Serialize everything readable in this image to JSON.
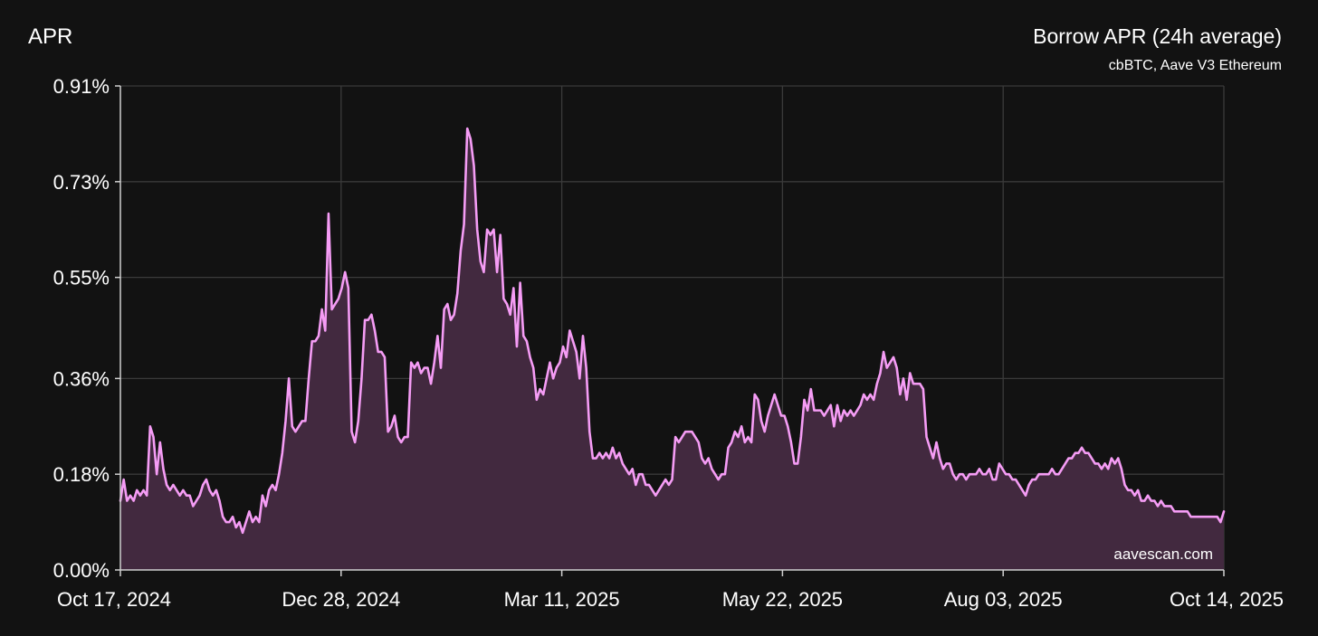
{
  "chart_data": {
    "type": "area",
    "title": "Borrow APR (24h average)",
    "subtitle": "cbBTC, Aave V3 Ethereum",
    "ylabel": "APR",
    "xlabel": "",
    "watermark": "aavescan.com",
    "x_start": "Oct 17, 2024",
    "x_end": "Oct 14, 2025",
    "ylim": [
      0,
      0.91
    ],
    "y_ticks": [
      0,
      0.18,
      0.36,
      0.55,
      0.73,
      0.91
    ],
    "y_tick_labels": [
      "0.00%",
      "0.18%",
      "0.36%",
      "0.55%",
      "0.73%",
      "0.91%"
    ],
    "x_tick_labels": [
      "Oct 17, 2024",
      "Dec 28, 2024",
      "Mar 11, 2025",
      "May 22, 2025",
      "Aug 03, 2025",
      "Oct 14, 2025"
    ],
    "grid": true,
    "line_color": "#f59cf5",
    "fill_color": "#42293f",
    "series": [
      {
        "values": [
          0.13,
          0.17,
          0.13,
          0.14,
          0.13,
          0.15,
          0.14,
          0.15,
          0.14,
          0.27,
          0.25,
          0.18,
          0.24,
          0.19,
          0.16,
          0.15,
          0.16,
          0.15,
          0.14,
          0.15,
          0.14,
          0.14,
          0.12,
          0.13,
          0.14,
          0.16,
          0.17,
          0.15,
          0.14,
          0.15,
          0.13,
          0.1,
          0.09,
          0.09,
          0.1,
          0.08,
          0.09,
          0.07,
          0.09,
          0.11,
          0.09,
          0.1,
          0.09,
          0.14,
          0.12,
          0.15,
          0.16,
          0.15,
          0.18,
          0.22,
          0.28,
          0.36,
          0.27,
          0.26,
          0.27,
          0.28,
          0.28,
          0.36,
          0.43,
          0.43,
          0.44,
          0.49,
          0.45,
          0.67,
          0.49,
          0.5,
          0.51,
          0.53,
          0.56,
          0.53,
          0.26,
          0.24,
          0.28,
          0.36,
          0.47,
          0.47,
          0.48,
          0.45,
          0.41,
          0.41,
          0.4,
          0.26,
          0.27,
          0.29,
          0.25,
          0.24,
          0.25,
          0.25,
          0.39,
          0.38,
          0.39,
          0.37,
          0.38,
          0.38,
          0.35,
          0.39,
          0.44,
          0.38,
          0.49,
          0.5,
          0.47,
          0.48,
          0.52,
          0.6,
          0.65,
          0.83,
          0.81,
          0.76,
          0.64,
          0.58,
          0.56,
          0.64,
          0.63,
          0.64,
          0.56,
          0.63,
          0.51,
          0.5,
          0.48,
          0.53,
          0.42,
          0.54,
          0.44,
          0.43,
          0.4,
          0.38,
          0.32,
          0.34,
          0.33,
          0.36,
          0.39,
          0.36,
          0.38,
          0.39,
          0.42,
          0.4,
          0.45,
          0.43,
          0.41,
          0.36,
          0.44,
          0.38,
          0.26,
          0.21,
          0.21,
          0.22,
          0.21,
          0.22,
          0.21,
          0.23,
          0.21,
          0.22,
          0.2,
          0.19,
          0.18,
          0.19,
          0.16,
          0.18,
          0.18,
          0.16,
          0.16,
          0.15,
          0.14,
          0.15,
          0.16,
          0.17,
          0.16,
          0.17,
          0.25,
          0.24,
          0.25,
          0.26,
          0.26,
          0.26,
          0.25,
          0.24,
          0.21,
          0.2,
          0.21,
          0.19,
          0.18,
          0.17,
          0.18,
          0.18,
          0.23,
          0.24,
          0.26,
          0.25,
          0.27,
          0.24,
          0.25,
          0.24,
          0.33,
          0.32,
          0.28,
          0.26,
          0.29,
          0.31,
          0.33,
          0.31,
          0.29,
          0.29,
          0.27,
          0.24,
          0.2,
          0.2,
          0.25,
          0.32,
          0.3,
          0.34,
          0.3,
          0.3,
          0.3,
          0.29,
          0.3,
          0.31,
          0.27,
          0.31,
          0.28,
          0.3,
          0.29,
          0.3,
          0.29,
          0.3,
          0.31,
          0.33,
          0.32,
          0.33,
          0.32,
          0.35,
          0.37,
          0.41,
          0.38,
          0.39,
          0.4,
          0.38,
          0.33,
          0.36,
          0.32,
          0.37,
          0.35,
          0.35,
          0.35,
          0.34,
          0.25,
          0.23,
          0.21,
          0.24,
          0.21,
          0.19,
          0.2,
          0.2,
          0.18,
          0.17,
          0.18,
          0.18,
          0.17,
          0.18,
          0.18,
          0.18,
          0.19,
          0.18,
          0.18,
          0.19,
          0.17,
          0.17,
          0.2,
          0.19,
          0.18,
          0.18,
          0.17,
          0.17,
          0.16,
          0.15,
          0.14,
          0.16,
          0.17,
          0.17,
          0.18,
          0.18,
          0.18,
          0.18,
          0.19,
          0.18,
          0.18,
          0.19,
          0.2,
          0.21,
          0.21,
          0.22,
          0.22,
          0.23,
          0.22,
          0.22,
          0.21,
          0.2,
          0.2,
          0.19,
          0.2,
          0.19,
          0.21,
          0.2,
          0.21,
          0.19,
          0.16,
          0.15,
          0.15,
          0.14,
          0.15,
          0.13,
          0.13,
          0.14,
          0.13,
          0.13,
          0.12,
          0.13,
          0.12,
          0.12,
          0.12,
          0.11,
          0.11,
          0.11,
          0.11,
          0.11,
          0.1,
          0.1,
          0.1,
          0.1,
          0.1,
          0.1,
          0.1,
          0.1,
          0.1,
          0.09,
          0.11
        ]
      }
    ]
  }
}
